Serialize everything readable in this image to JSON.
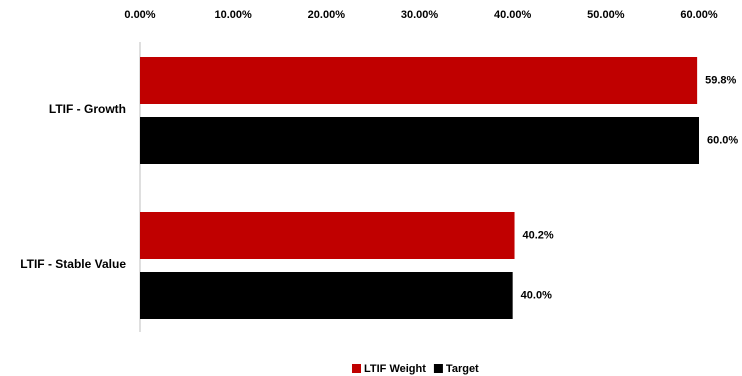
{
  "chart_data": {
    "type": "bar",
    "orientation": "horizontal",
    "categories": [
      "LTIF - Growth",
      "LTIF - Stable Value"
    ],
    "series": [
      {
        "name": "LTIF Weight",
        "color": "#c00000",
        "values": [
          59.8,
          40.2
        ],
        "value_labels": [
          "59.8%",
          "40.2%"
        ]
      },
      {
        "name": "Target",
        "color": "#000000",
        "values": [
          60.0,
          40.0
        ],
        "value_labels": [
          "60.0%",
          "40.0%"
        ]
      }
    ],
    "xlim": [
      0,
      60
    ],
    "xticks": [
      {
        "value": 0,
        "label": "0.00%"
      },
      {
        "value": 10,
        "label": "10.00%"
      },
      {
        "value": 20,
        "label": "20.00%"
      },
      {
        "value": 30,
        "label": "30.00%"
      },
      {
        "value": 40,
        "label": "40.00%"
      },
      {
        "value": 50,
        "label": "50.00%"
      },
      {
        "value": 60,
        "label": "60.00%"
      }
    ],
    "xaxis_position": "top",
    "grid": false,
    "legend": "bottom"
  }
}
